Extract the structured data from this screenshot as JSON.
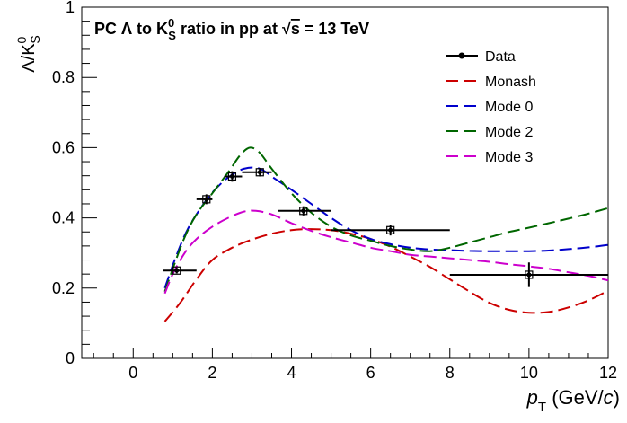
{
  "chart_data": {
    "type": "line",
    "title": "PC Λ to K⁰S ratio in pp at √s = 13 TeV",
    "title_parts": {
      "prefix": "PC ",
      "lambda": "Λ",
      "to": " to K",
      "k_sup": "0",
      "k_sub": "S",
      "mid": " ratio in pp at ",
      "sqrt": "√",
      "s": "s",
      "suffix": " = 13 TeV"
    },
    "xlabel": "pT (GeV/c)",
    "xlabel_parts": {
      "p": "p",
      "sub": "T",
      "unit_open": " (GeV/",
      "c": "c",
      "unit_close": ")"
    },
    "ylabel": "Λ/K⁰S",
    "ylabel_parts": {
      "main": "Λ/K",
      "sup": "0",
      "sub": "S"
    },
    "xlim": [
      -1.3,
      12
    ],
    "ylim": [
      0,
      1
    ],
    "xticks": [
      0,
      2,
      4,
      6,
      8,
      10,
      12
    ],
    "xtick_labels": [
      "0",
      "2",
      "4",
      "6",
      "8",
      "10",
      "12"
    ],
    "yticks": [
      0,
      0.2,
      0.4,
      0.6,
      0.8,
      1
    ],
    "ytick_labels": [
      "0",
      "0.2",
      "0.4",
      "0.6",
      "0.8",
      "1"
    ],
    "grid": false,
    "legend_position": "top-right",
    "data_points": {
      "name": "Data",
      "points": [
        {
          "x": 1.1,
          "y": 0.25,
          "xerr_low": 0.35,
          "xerr_high": 0.5,
          "yerr": 0.008
        },
        {
          "x": 1.85,
          "y": 0.453,
          "xerr_low": 0.25,
          "xerr_high": 0.15,
          "yerr": 0.014
        },
        {
          "x": 2.5,
          "y": 0.518,
          "xerr_low": 0.2,
          "xerr_high": 0.25,
          "yerr": 0.015
        },
        {
          "x": 3.2,
          "y": 0.53,
          "xerr_low": 0.45,
          "xerr_high": 0.3,
          "yerr": 0.012
        },
        {
          "x": 4.3,
          "y": 0.42,
          "xerr_low": 0.65,
          "xerr_high": 0.7,
          "yerr": 0.013
        },
        {
          "x": 6.5,
          "y": 0.365,
          "xerr_low": 1.5,
          "xerr_high": 1.5,
          "yerr": 0.015
        },
        {
          "x": 10.0,
          "y": 0.238,
          "xerr_low": 2.0,
          "xerr_high": 2.0,
          "yerr": 0.035
        }
      ]
    },
    "series": [
      {
        "name": "Monash",
        "color": "#cc0000",
        "x": [
          0.8,
          1.2,
          1.6,
          2.0,
          2.5,
          3.0,
          3.5,
          4.0,
          4.5,
          5.0,
          5.5,
          6.0,
          6.5,
          7.0,
          7.5,
          8.0,
          8.5,
          9.0,
          9.5,
          10.0,
          10.5,
          11.0,
          11.5,
          12.0
        ],
        "y": [
          0.105,
          0.16,
          0.225,
          0.28,
          0.315,
          0.338,
          0.355,
          0.365,
          0.368,
          0.365,
          0.355,
          0.34,
          0.318,
          0.29,
          0.26,
          0.225,
          0.19,
          0.158,
          0.138,
          0.13,
          0.132,
          0.145,
          0.165,
          0.193
        ]
      },
      {
        "name": "Mode 0",
        "color": "#0000cc",
        "x": [
          0.8,
          1.0,
          1.3,
          1.6,
          2.0,
          2.4,
          2.8,
          3.2,
          3.6,
          4.0,
          4.5,
          5.0,
          5.5,
          6.0,
          6.5,
          7.0,
          7.5,
          8.0,
          8.5,
          9.0,
          9.5,
          10.0,
          10.5,
          11.0,
          11.5,
          12.0
        ],
        "y": [
          0.2,
          0.265,
          0.35,
          0.41,
          0.472,
          0.515,
          0.54,
          0.54,
          0.51,
          0.48,
          0.44,
          0.4,
          0.365,
          0.34,
          0.325,
          0.315,
          0.31,
          0.308,
          0.306,
          0.305,
          0.305,
          0.305,
          0.307,
          0.311,
          0.316,
          0.323
        ]
      },
      {
        "name": "Mode 2",
        "color": "#006600",
        "x": [
          0.8,
          1.0,
          1.3,
          1.6,
          2.0,
          2.4,
          2.7,
          2.95,
          3.2,
          3.5,
          4.0,
          4.5,
          5.0,
          5.5,
          6.0,
          6.5,
          7.0,
          7.5,
          8.0,
          8.5,
          9.0,
          9.5,
          10.0,
          10.5,
          11.0,
          11.5,
          12.0
        ],
        "y": [
          0.19,
          0.255,
          0.345,
          0.41,
          0.47,
          0.53,
          0.578,
          0.6,
          0.585,
          0.54,
          0.47,
          0.415,
          0.375,
          0.35,
          0.335,
          0.32,
          0.31,
          0.305,
          0.315,
          0.33,
          0.345,
          0.36,
          0.372,
          0.385,
          0.398,
          0.412,
          0.428
        ]
      },
      {
        "name": "Mode 3",
        "color": "#cc00cc",
        "x": [
          0.8,
          1.0,
          1.3,
          1.6,
          2.0,
          2.4,
          2.8,
          3.1,
          3.5,
          4.0,
          4.5,
          5.0,
          5.5,
          6.0,
          6.5,
          7.0,
          7.5,
          8.0,
          8.5,
          9.0,
          9.5,
          10.0,
          10.5,
          11.0,
          11.5,
          12.0
        ],
        "y": [
          0.185,
          0.24,
          0.3,
          0.34,
          0.375,
          0.4,
          0.418,
          0.42,
          0.41,
          0.385,
          0.363,
          0.345,
          0.33,
          0.315,
          0.305,
          0.295,
          0.29,
          0.285,
          0.28,
          0.275,
          0.268,
          0.262,
          0.255,
          0.245,
          0.235,
          0.222
        ]
      }
    ],
    "legend": [
      {
        "label": "Data",
        "type": "marker",
        "color": "#000000"
      },
      {
        "label": "Monash",
        "type": "line",
        "color": "#cc0000"
      },
      {
        "label": "Mode 0",
        "type": "line",
        "color": "#0000cc"
      },
      {
        "label": "Mode 2",
        "type": "line",
        "color": "#006600"
      },
      {
        "label": "Mode 3",
        "type": "line",
        "color": "#cc00cc"
      }
    ]
  }
}
